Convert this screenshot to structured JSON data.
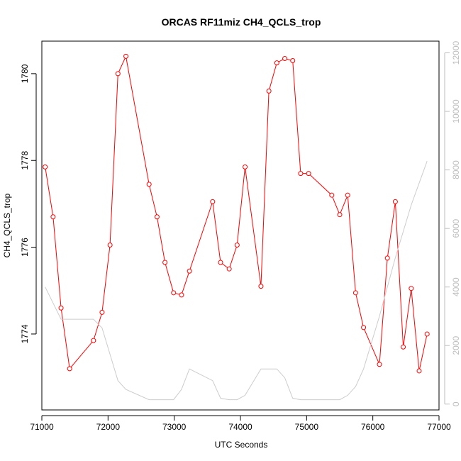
{
  "chart_data": {
    "type": "line",
    "title": "ORCAS RF11miz CH4_QCLS_trop",
    "xlabel": "UTC Seconds",
    "ylabel": "CH4_QCLS_trop",
    "xlim": [
      71000,
      77000
    ],
    "ylim_left": [
      1772.25,
      1780.75
    ],
    "ylim_right": [
      -200,
      12400
    ],
    "x_ticks": [
      71000,
      72000,
      73000,
      74000,
      75000,
      76000,
      77000
    ],
    "y_ticks_left": [
      1774,
      1776,
      1778,
      1780
    ],
    "y_ticks_right": [
      0,
      2000,
      4000,
      6000,
      8000,
      10000,
      12000
    ],
    "grid": false,
    "series": [
      {
        "axis": "left",
        "color": "#ff0000",
        "marker": "open-circle",
        "points": [
          [
            71050,
            1777.85
          ],
          [
            71170,
            1776.7
          ],
          [
            71290,
            1774.6
          ],
          [
            71420,
            1773.2
          ],
          [
            71780,
            1773.85
          ],
          [
            71910,
            1774.5
          ],
          [
            72030,
            1776.05
          ],
          [
            72150,
            1780.0
          ],
          [
            72270,
            1780.4
          ],
          [
            72620,
            1777.45
          ],
          [
            72740,
            1776.7
          ],
          [
            72860,
            1775.65
          ],
          [
            72990,
            1774.95
          ],
          [
            73110,
            1774.9
          ],
          [
            73230,
            1775.45
          ],
          [
            73580,
            1777.05
          ],
          [
            73700,
            1775.65
          ],
          [
            73830,
            1775.5
          ],
          [
            73950,
            1776.05
          ],
          [
            74070,
            1777.85
          ],
          [
            74310,
            1775.1
          ],
          [
            74430,
            1779.6
          ],
          [
            74550,
            1780.25
          ],
          [
            74670,
            1780.35
          ],
          [
            74790,
            1780.3
          ],
          [
            74910,
            1777.7
          ],
          [
            75030,
            1777.7
          ],
          [
            75380,
            1777.2
          ],
          [
            75500,
            1776.75
          ],
          [
            75620,
            1777.2
          ],
          [
            75740,
            1774.95
          ],
          [
            75860,
            1774.15
          ],
          [
            76100,
            1773.3
          ],
          [
            76220,
            1775.75
          ],
          [
            76340,
            1777.05
          ],
          [
            76460,
            1773.7
          ],
          [
            76580,
            1775.05
          ],
          [
            76700,
            1773.15
          ],
          [
            76820,
            1774.0
          ]
        ]
      },
      {
        "axis": "right",
        "color": "#cccccc",
        "marker": "none",
        "points": [
          [
            71050,
            4000
          ],
          [
            71290,
            2900
          ],
          [
            71780,
            2900
          ],
          [
            71910,
            2600
          ],
          [
            72150,
            800
          ],
          [
            72270,
            500
          ],
          [
            72620,
            150
          ],
          [
            72740,
            150
          ],
          [
            72990,
            150
          ],
          [
            73110,
            500
          ],
          [
            73230,
            1200
          ],
          [
            73580,
            800
          ],
          [
            73700,
            200
          ],
          [
            73830,
            150
          ],
          [
            73950,
            150
          ],
          [
            74070,
            300
          ],
          [
            74310,
            1200
          ],
          [
            74550,
            1200
          ],
          [
            74670,
            900
          ],
          [
            74790,
            200
          ],
          [
            74910,
            150
          ],
          [
            75030,
            150
          ],
          [
            75380,
            150
          ],
          [
            75500,
            150
          ],
          [
            75620,
            300
          ],
          [
            75740,
            600
          ],
          [
            75860,
            1200
          ],
          [
            76100,
            3000
          ],
          [
            76340,
            5000
          ],
          [
            76580,
            6800
          ],
          [
            76820,
            8300
          ]
        ]
      }
    ]
  }
}
